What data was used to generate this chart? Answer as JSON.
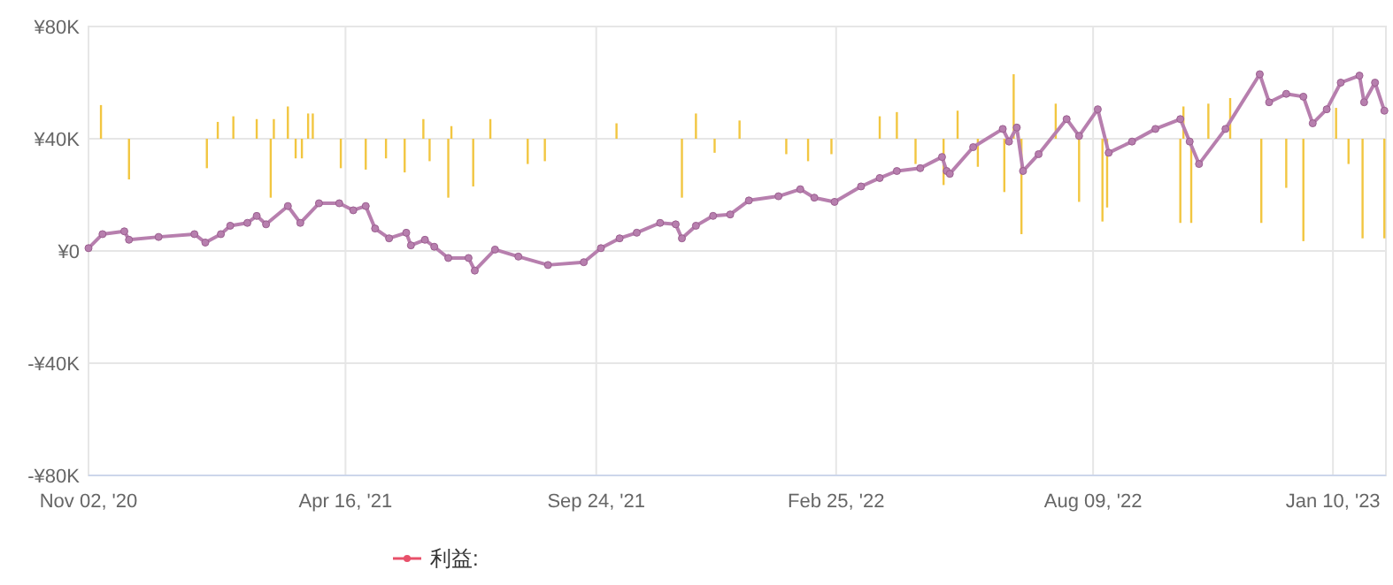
{
  "chart_data": {
    "type": "line",
    "ylim": [
      -80000,
      80000
    ],
    "yticks": [
      {
        "value": -80000,
        "label": "-¥80K"
      },
      {
        "value": -40000,
        "label": "-¥40K"
      },
      {
        "value": 0,
        "label": "¥0"
      },
      {
        "value": 40000,
        "label": "¥40K"
      },
      {
        "value": 80000,
        "label": "¥80K"
      }
    ],
    "xlim": [
      "2020-11-02",
      "2023-02-13"
    ],
    "xticks": [
      {
        "value": "2020-11-02",
        "label": "Nov 02, '20"
      },
      {
        "value": "2021-04-16",
        "label": "Apr 16, '21"
      },
      {
        "value": "2021-09-24",
        "label": "Sep 24, '21"
      },
      {
        "value": "2022-02-25",
        "label": "Feb 25, '22"
      },
      {
        "value": "2022-08-09",
        "label": "Aug 09, '22"
      },
      {
        "value": "2023-01-10",
        "label": "Jan 10, '23"
      }
    ],
    "grid": true,
    "legend": "bottom",
    "marker": "circle",
    "series": [
      {
        "type": "bar",
        "color": "#f2c641",
        "x": [
          "2020-11-10",
          "2020-11-28",
          "2021-01-17",
          "2021-01-24",
          "2021-02-03",
          "2021-02-18",
          "2021-02-27",
          "2021-03-01",
          "2021-03-10",
          "2021-03-15",
          "2021-03-19",
          "2021-03-23",
          "2021-03-26",
          "2021-04-13",
          "2021-04-29",
          "2021-05-12",
          "2021-05-24",
          "2021-06-05",
          "2021-06-09",
          "2021-06-21",
          "2021-06-23",
          "2021-07-07",
          "2021-07-18",
          "2021-08-11",
          "2021-08-22",
          "2021-10-07",
          "2021-11-18",
          "2021-11-27",
          "2021-12-09",
          "2021-12-25",
          "2022-01-24",
          "2022-02-07",
          "2022-02-22",
          "2022-03-25",
          "2022-04-05",
          "2022-04-17",
          "2022-05-05",
          "2022-05-14",
          "2022-05-27",
          "2022-06-13",
          "2022-06-19",
          "2022-06-24",
          "2022-07-16",
          "2022-07-31",
          "2022-08-15",
          "2022-08-18",
          "2022-10-04",
          "2022-10-06",
          "2022-10-11",
          "2022-10-22",
          "2022-11-05",
          "2022-11-25",
          "2022-12-11",
          "2022-12-22",
          "2023-01-12",
          "2023-01-20",
          "2023-01-29",
          "2023-02-12"
        ],
        "values": [
          12000,
          -14500,
          -10500,
          6000,
          8000,
          7000,
          -21000,
          7000,
          11500,
          -7000,
          -7000,
          9000,
          9000,
          -10500,
          -11000,
          -7000,
          -12000,
          7000,
          -8000,
          -21000,
          4500,
          -17000,
          7000,
          -9000,
          -8000,
          5500,
          -21000,
          9000,
          -5000,
          6500,
          -5500,
          -8000,
          -5500,
          8000,
          9500,
          -9000,
          -16500,
          10000,
          -10000,
          -19000,
          23000,
          -34000,
          12500,
          -22500,
          -29500,
          -24500,
          -30000,
          11500,
          -30000,
          12500,
          14500,
          -30000,
          -17500,
          -36500,
          11000,
          -9000,
          -35500,
          -35500
        ],
        "base": [
          40000,
          40000,
          40000,
          40000,
          40000,
          40000,
          40000,
          40000,
          40000,
          40000,
          40000,
          40000,
          40000,
          40000,
          40000,
          40000,
          40000,
          40000,
          40000,
          40000,
          40000,
          40000,
          40000,
          40000,
          40000,
          40000,
          40000,
          40000,
          40000,
          40000,
          40000,
          40000,
          40000,
          40000,
          40000,
          40000,
          40000,
          40000,
          40000,
          40000,
          40000,
          40000,
          40000,
          40000,
          40000,
          40000,
          40000,
          40000,
          40000,
          40000,
          40000,
          40000,
          40000,
          40000,
          40000,
          40000,
          40000,
          40000
        ]
      },
      {
        "name": "利益:",
        "type": "line",
        "color": "#e8506a"
      },
      {
        "color": "#b77fae",
        "x": [
          "2020-11-02",
          "2020-11-11",
          "2020-11-25",
          "2020-11-28",
          "2020-12-17",
          "2021-01-09",
          "2021-01-16",
          "2021-01-26",
          "2021-02-01",
          "2021-02-12",
          "2021-02-18",
          "2021-02-24",
          "2021-03-10",
          "2021-03-18",
          "2021-03-30",
          "2021-04-12",
          "2021-04-21",
          "2021-04-29",
          "2021-05-05",
          "2021-05-14",
          "2021-05-25",
          "2021-05-28",
          "2021-06-06",
          "2021-06-12",
          "2021-06-21",
          "2021-07-04",
          "2021-07-08",
          "2021-07-21",
          "2021-08-05",
          "2021-08-24",
          "2021-09-16",
          "2021-09-27",
          "2021-10-09",
          "2021-10-20",
          "2021-11-04",
          "2021-11-14",
          "2021-11-18",
          "2021-11-27",
          "2021-12-08",
          "2021-12-19",
          "2021-12-31",
          "2022-01-19",
          "2022-02-02",
          "2022-02-11",
          "2022-02-24",
          "2022-03-13",
          "2022-03-25",
          "2022-04-05",
          "2022-04-20",
          "2022-05-04",
          "2022-05-07",
          "2022-05-09",
          "2022-05-24",
          "2022-06-12",
          "2022-06-16",
          "2022-06-21",
          "2022-06-25",
          "2022-07-05",
          "2022-07-23",
          "2022-07-31",
          "2022-08-12",
          "2022-08-19",
          "2022-09-03",
          "2022-09-18",
          "2022-10-04",
          "2022-10-10",
          "2022-10-16",
          "2022-11-02",
          "2022-11-24",
          "2022-11-30",
          "2022-12-11",
          "2022-12-22",
          "2022-12-28",
          "2023-01-06",
          "2023-01-15",
          "2023-01-27",
          "2023-01-30",
          "2023-02-06",
          "2023-02-12"
        ],
        "values": [
          1000,
          6000,
          7000,
          4000,
          5000,
          6000,
          3000,
          6000,
          9000,
          10000,
          12500,
          9500,
          16000,
          10000,
          17000,
          17000,
          14500,
          16000,
          8000,
          4500,
          6500,
          2000,
          4000,
          1500,
          -2500,
          -2500,
          -7000,
          500,
          -2000,
          -5000,
          -4000,
          1000,
          4500,
          6500,
          10000,
          9500,
          4500,
          9000,
          12500,
          13000,
          18000,
          19500,
          22000,
          19000,
          17500,
          23000,
          26000,
          28500,
          29500,
          33500,
          28500,
          27500,
          37000,
          43500,
          39000,
          44000,
          28500,
          34500,
          47000,
          41000,
          50500,
          35000,
          39000,
          43500,
          47000,
          39000,
          31000,
          43500,
          63000,
          53000,
          56000,
          55000,
          45500,
          50500,
          60000,
          62500,
          53000,
          60000,
          50000
        ]
      }
    ]
  }
}
